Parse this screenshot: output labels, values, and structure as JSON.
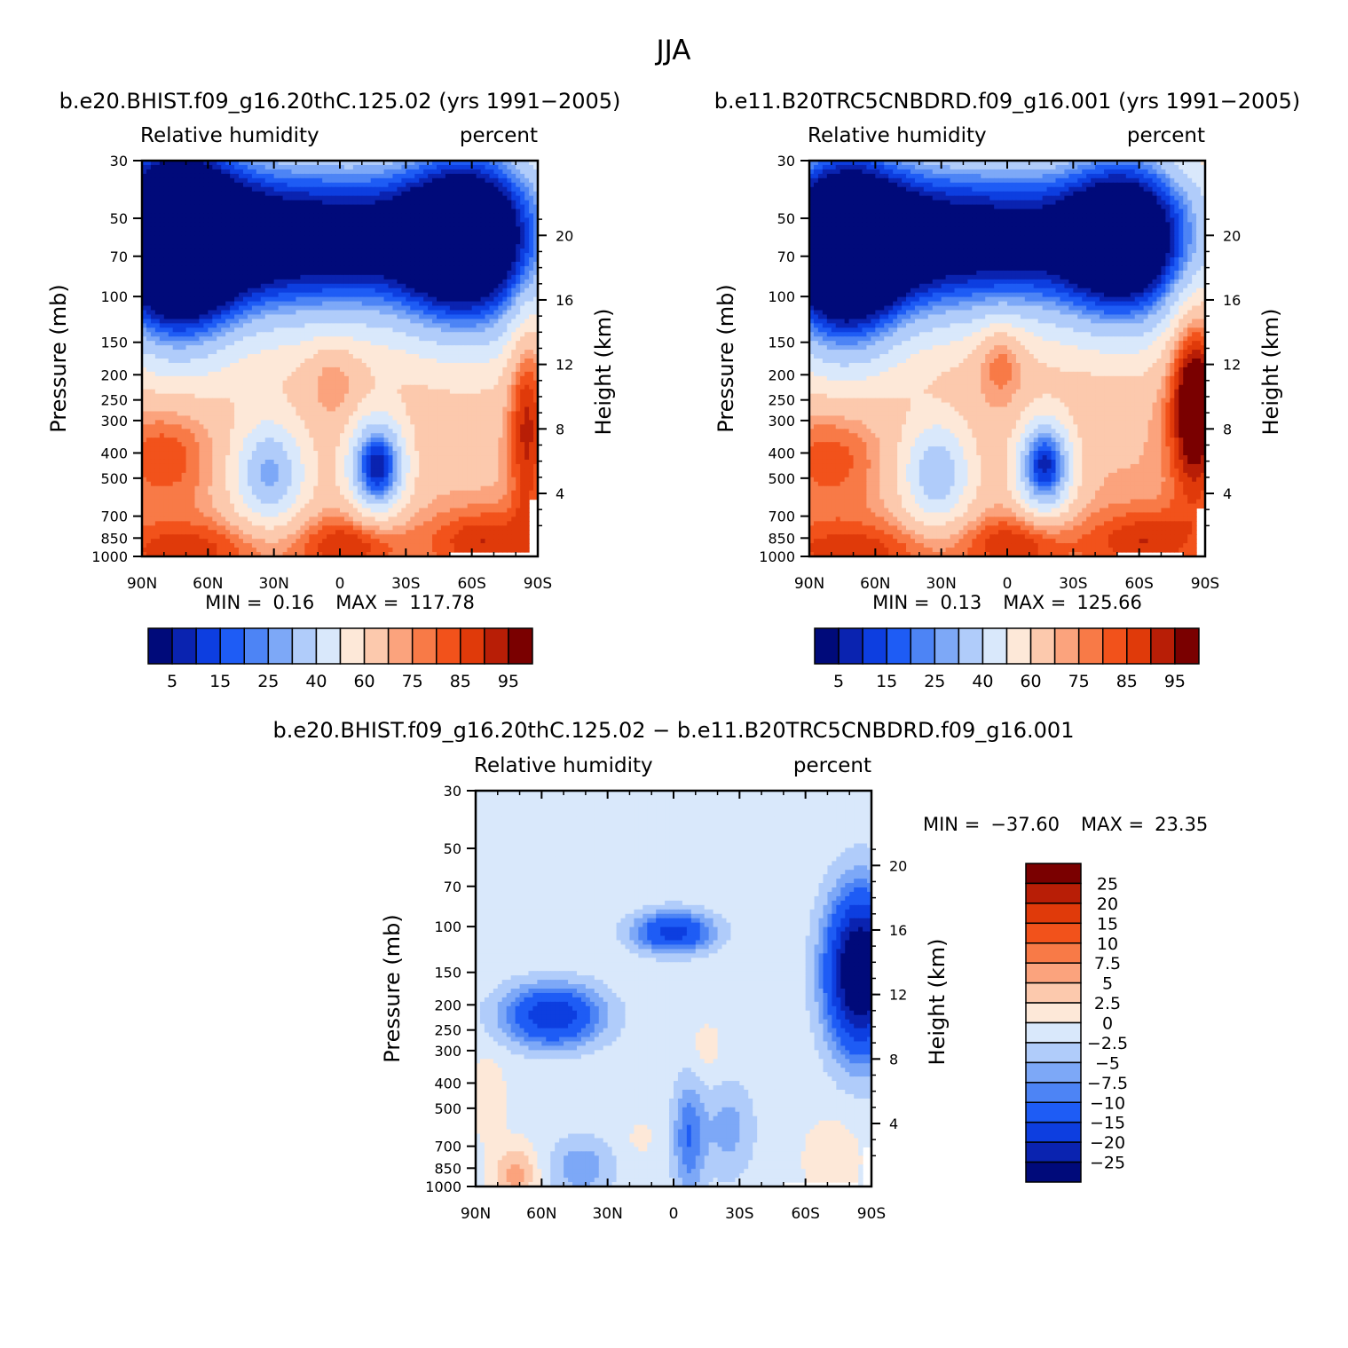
{
  "season": "JJA",
  "palette": {
    "abs": [
      "#000a7a",
      "#0a23b0",
      "#0d3ee0",
      "#1e5cf5",
      "#4d84f5",
      "#7da8f7",
      "#b0ccfa",
      "#d9e8fb",
      "#fde8d8",
      "#fcc9ad",
      "#fba37d",
      "#f87a47",
      "#f2521b",
      "#e03a0a",
      "#b81e06",
      "#7a0000"
    ],
    "diff": [
      "#000a7a",
      "#0a23b0",
      "#0d3ee0",
      "#1e5cf5",
      "#4d84f5",
      "#7da8f7",
      "#b0ccfa",
      "#d9e8fb",
      "#fde8d8",
      "#fcc9ad",
      "#fba37d",
      "#f87a47",
      "#f2521b",
      "#e03a0a",
      "#b81e06",
      "#7a0000"
    ]
  },
  "chart_data": [
    {
      "type": "heatmap",
      "id": "panel1",
      "title": "b.e20.BHIST.f09_g16.20thC.125.02 (yrs 1991−2005)",
      "left_label": "Relative humidity",
      "right_label": "percent",
      "xlabel": "",
      "ylabel": "Pressure (mb)",
      "y2label": "Height (km)",
      "x_ticks": [
        "90N",
        "60N",
        "30N",
        "0",
        "30S",
        "60S",
        "90S"
      ],
      "x_range": [
        90,
        -90
      ],
      "y_ticks": [
        30,
        50,
        70,
        100,
        150,
        200,
        250,
        300,
        400,
        500,
        700,
        850,
        1000
      ],
      "y_range": [
        30,
        1000
      ],
      "y2_ticks": [
        20,
        16,
        12,
        8,
        4
      ],
      "min_label": "MIN =",
      "min_value": "0.16",
      "max_label": "MAX =",
      "max_value": "117.78",
      "colorbar_labels": [
        "5",
        "15",
        "25",
        "40",
        "60",
        "75",
        "85",
        "95"
      ],
      "fields": {
        "base": 68,
        "blobs": [
          {
            "lat": 20,
            "p": 60,
            "sx": 75,
            "sy": 0.55,
            "a": -75
          },
          {
            "lat": 75,
            "p": 60,
            "sx": 20,
            "sy": 0.75,
            "a": -60
          },
          {
            "lat": -60,
            "p": 60,
            "sx": 22,
            "sy": 0.65,
            "a": -55
          },
          {
            "lat": 32,
            "p": 480,
            "sx": 12,
            "sy": 0.35,
            "a": -40
          },
          {
            "lat": -17,
            "p": 450,
            "sx": 9,
            "sy": 0.3,
            "a": -62
          },
          {
            "lat": 3,
            "p": 200,
            "sx": 8,
            "sy": 0.25,
            "a": 12
          },
          {
            "lat": 80,
            "p": 400,
            "sx": 16,
            "sy": 0.35,
            "a": 18
          },
          {
            "lat": -85,
            "p": 300,
            "sx": 6,
            "sy": 0.7,
            "a": 25
          },
          {
            "lat": 70,
            "p": 950,
            "sx": 30,
            "sy": 0.2,
            "a": 20
          },
          {
            "lat": -5,
            "p": 900,
            "sx": 18,
            "sy": 0.2,
            "a": 22
          },
          {
            "lat": -65,
            "p": 880,
            "sx": 18,
            "sy": 0.22,
            "a": 22
          }
        ],
        "missing": [
          {
            "lat0": -50,
            "lat1": -85,
            "p0": 960,
            "p1": 1000
          },
          {
            "lat0": -86,
            "lat1": -90,
            "p0": 600,
            "p1": 1000
          }
        ]
      },
      "levels": [
        5,
        10,
        15,
        20,
        25,
        30,
        40,
        50,
        60,
        70,
        75,
        80,
        85,
        90,
        95
      ]
    },
    {
      "type": "heatmap",
      "id": "panel2",
      "title": "b.e11.B20TRC5CNBDRD.f09_g16.001 (yrs 1991−2005)",
      "left_label": "Relative humidity",
      "right_label": "percent",
      "xlabel": "",
      "ylabel": "Pressure (mb)",
      "y2label": "Height (km)",
      "x_ticks": [
        "90N",
        "60N",
        "30N",
        "0",
        "30S",
        "60S",
        "90S"
      ],
      "x_range": [
        90,
        -90
      ],
      "y_ticks": [
        30,
        50,
        70,
        100,
        150,
        200,
        250,
        300,
        400,
        500,
        700,
        850,
        1000
      ],
      "y_range": [
        30,
        1000
      ],
      "y2_ticks": [
        20,
        16,
        12,
        8,
        4
      ],
      "min_label": "MIN =",
      "min_value": "0.13",
      "max_label": "MAX =",
      "max_value": "125.66",
      "colorbar_labels": [
        "5",
        "15",
        "25",
        "40",
        "60",
        "75",
        "85",
        "95"
      ],
      "fields": {
        "base": 70,
        "blobs": [
          {
            "lat": 20,
            "p": 60,
            "sx": 75,
            "sy": 0.55,
            "a": -75
          },
          {
            "lat": 75,
            "p": 70,
            "sx": 20,
            "sy": 0.75,
            "a": -55
          },
          {
            "lat": -55,
            "p": 60,
            "sx": 20,
            "sy": 0.6,
            "a": -50
          },
          {
            "lat": 32,
            "p": 480,
            "sx": 12,
            "sy": 0.35,
            "a": -38
          },
          {
            "lat": -17,
            "p": 450,
            "sx": 9,
            "sy": 0.3,
            "a": -62
          },
          {
            "lat": 3,
            "p": 170,
            "sx": 8,
            "sy": 0.25,
            "a": 18
          },
          {
            "lat": 80,
            "p": 400,
            "sx": 16,
            "sy": 0.35,
            "a": 16
          },
          {
            "lat": -85,
            "p": 250,
            "sx": 8,
            "sy": 0.6,
            "a": 40
          },
          {
            "lat": 70,
            "p": 950,
            "sx": 30,
            "sy": 0.2,
            "a": 18
          },
          {
            "lat": -5,
            "p": 900,
            "sx": 18,
            "sy": 0.2,
            "a": 20
          },
          {
            "lat": -62,
            "p": 880,
            "sx": 18,
            "sy": 0.22,
            "a": 20
          }
        ],
        "missing": [
          {
            "lat0": -50,
            "lat1": -80,
            "p0": 970,
            "p1": 1000
          },
          {
            "lat0": -87,
            "lat1": -90,
            "p0": 650,
            "p1": 1000
          }
        ]
      },
      "levels": [
        5,
        10,
        15,
        20,
        25,
        30,
        40,
        50,
        60,
        70,
        75,
        80,
        85,
        90,
        95
      ]
    },
    {
      "type": "heatmap",
      "id": "panel3",
      "title": "b.e20.BHIST.f09_g16.20thC.125.02 − b.e11.B20TRC5CNBDRD.f09_g16.001",
      "left_label": "Relative humidity",
      "right_label": "percent",
      "xlabel": "",
      "ylabel": "Pressure (mb)",
      "y2label": "Height (km)",
      "x_ticks": [
        "90N",
        "60N",
        "30N",
        "0",
        "30S",
        "60S",
        "90S"
      ],
      "x_range": [
        90,
        -90
      ],
      "y_ticks": [
        30,
        50,
        70,
        100,
        150,
        200,
        250,
        300,
        400,
        500,
        700,
        850,
        1000
      ],
      "y_range": [
        30,
        1000
      ],
      "y2_ticks": [
        20,
        16,
        12,
        8,
        4
      ],
      "min_label": "MIN =",
      "min_value": "−37.60",
      "max_label": "MAX =",
      "max_value": "23.35",
      "colorbar_labels": [
        "25",
        "20",
        "15",
        "10",
        "7.5",
        "5",
        "2.5",
        "0",
        "−2.5",
        "−5",
        "−7.5",
        "−10",
        "−15",
        "−20",
        "−25"
      ],
      "fields": {
        "base": -1,
        "blobs": [
          {
            "lat": 55,
            "p": 220,
            "sx": 15,
            "sy": 0.18,
            "a": -18
          },
          {
            "lat": -85,
            "p": 150,
            "sx": 10,
            "sy": 0.45,
            "a": -35
          },
          {
            "lat": 0,
            "p": 105,
            "sx": 12,
            "sy": 0.12,
            "a": -16
          },
          {
            "lat": -7,
            "p": 650,
            "sx": 5,
            "sy": 0.35,
            "a": -9
          },
          {
            "lat": -25,
            "p": 600,
            "sx": 8,
            "sy": 0.3,
            "a": -5
          },
          {
            "lat": 42,
            "p": 850,
            "sx": 10,
            "sy": 0.18,
            "a": -6
          },
          {
            "lat": 72,
            "p": 900,
            "sx": 7,
            "sy": 0.18,
            "a": 7
          },
          {
            "lat": 85,
            "p": 450,
            "sx": 6,
            "sy": 0.25,
            "a": 3
          },
          {
            "lat": -72,
            "p": 780,
            "sx": 9,
            "sy": 0.25,
            "a": 3
          },
          {
            "lat": -15,
            "p": 300,
            "sx": 6,
            "sy": 0.2,
            "a": 2
          },
          {
            "lat": 15,
            "p": 650,
            "sx": 4,
            "sy": 0.1,
            "a": 2
          }
        ],
        "missing": [
          {
            "lat0": -50,
            "lat1": -83,
            "p0": 975,
            "p1": 1000
          },
          {
            "lat0": -86,
            "lat1": -90,
            "p0": 700,
            "p1": 1000
          }
        ]
      },
      "levels": [
        -25,
        -20,
        -15,
        -10,
        -7.5,
        -5,
        -2.5,
        0,
        2.5,
        5,
        7.5,
        10,
        15,
        20,
        25
      ]
    }
  ]
}
